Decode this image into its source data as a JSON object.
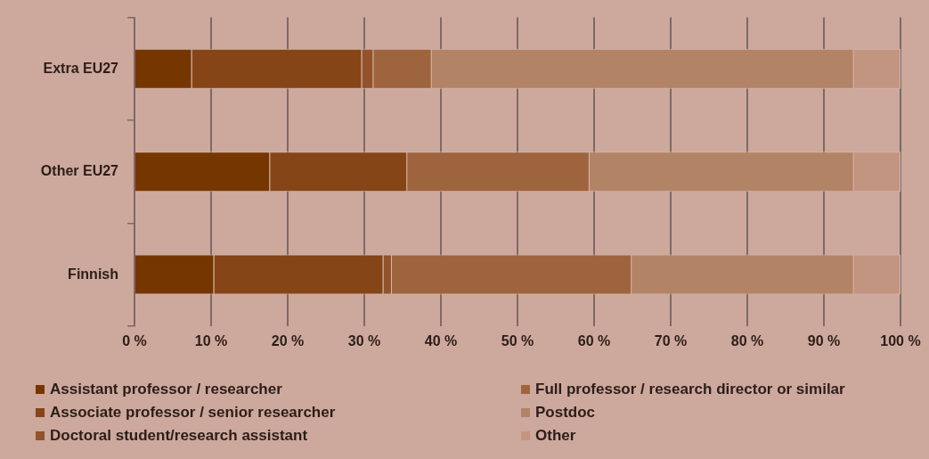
{
  "chart_data": {
    "type": "bar",
    "orientation": "horizontal",
    "stacked": true,
    "categories": [
      "Extra EU27",
      "Other EU27",
      "Finnish"
    ],
    "series": [
      {
        "name": "Assistant professor / researcher",
        "color": "#763600",
        "values": [
          7.5,
          17.7,
          10.4
        ]
      },
      {
        "name": "Associate professor / senior researcher",
        "color": "#854516",
        "values": [
          22.2,
          17.9,
          22.1
        ]
      },
      {
        "name": "Doctoral student/research assistant",
        "color": "#92522a",
        "values": [
          1.5,
          0,
          1.1
        ]
      },
      {
        "name": "Full professor / research director or similar",
        "color": "#9e643e",
        "values": [
          7.6,
          23.8,
          31.3
        ]
      },
      {
        "name": "Postdoc",
        "color": "#b38366",
        "values": [
          55.1,
          34.5,
          29.0
        ]
      },
      {
        "name": "Other",
        "color": "#c29581",
        "values": [
          6.1,
          6.1,
          6.1
        ]
      }
    ],
    "xlim": [
      0,
      100
    ],
    "xticks": [
      {
        "value": 0,
        "label": "0 %"
      },
      {
        "value": 10,
        "label": "10 %"
      },
      {
        "value": 20,
        "label": "20 %"
      },
      {
        "value": 30,
        "label": "30 %"
      },
      {
        "value": 40,
        "label": "40 %"
      },
      {
        "value": 50,
        "label": "50 %"
      },
      {
        "value": 60,
        "label": "60 %"
      },
      {
        "value": 70,
        "label": "70 %"
      },
      {
        "value": 80,
        "label": "80 %"
      },
      {
        "value": 90,
        "label": "90 %"
      },
      {
        "value": 100,
        "label": "100 %"
      }
    ],
    "grid": "x",
    "legend": "bottom"
  }
}
